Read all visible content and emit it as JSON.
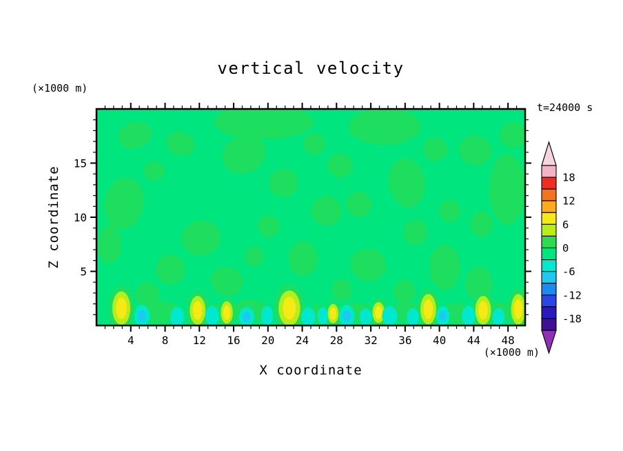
{
  "chart_data": {
    "type": "contour",
    "title": "vertical velocity",
    "annotation_time": "t=24000 s",
    "xlabel": "X coordinate",
    "ylabel": "Z coordinate",
    "x_unit_label": "(×1000 m)",
    "y_unit_label": "(×1000 m)",
    "x_range": [
      0,
      50
    ],
    "y_range": [
      0,
      20
    ],
    "x_major_ticks": [
      4,
      8,
      12,
      16,
      20,
      24,
      28,
      32,
      36,
      40,
      44,
      48
    ],
    "x_minor_tick_step": 1,
    "y_major_ticks": [
      5,
      10,
      15
    ],
    "y_minor_tick_step": 1,
    "colorbar": {
      "levels": [
        21,
        18,
        15,
        12,
        9,
        6,
        3,
        0,
        -3,
        -6,
        -9,
        -12,
        -15,
        -18,
        -21
      ],
      "labels": [
        18,
        12,
        6,
        0,
        -6,
        -12,
        -18
      ],
      "segment_colors": [
        "#f3b3c6",
        "#ee2e24",
        "#f4731e",
        "#fbab1d",
        "#f5ea16",
        "#b7ee1a",
        "#2cdc4e",
        "#00e57e",
        "#00e9ce",
        "#1ec8f0",
        "#1a8cf0",
        "#2a46e8",
        "#2b19c0",
        "#3f0f96"
      ],
      "over_arrow_color": "#f7d4df",
      "under_arrow_color": "#9030b4"
    },
    "field_colors": {
      "base": "#00e57e",
      "weak_updraft": "#1ede60",
      "updraft_ring": "#b7ee1a",
      "updraft_core": "#f5ea16",
      "weak_downdraft": "#00e9ce",
      "downdraft_core": "#1ec8f0"
    },
    "features": {
      "positive_patches": [
        {
          "x": 4.5,
          "z": 17.6,
          "rx": 2.0,
          "rz": 1.2,
          "rot": -15
        },
        {
          "x": 3.2,
          "z": 11.3,
          "rx": 2.3,
          "rz": 2.4,
          "rot": 10
        },
        {
          "x": 1.5,
          "z": 7.5,
          "rx": 1.4,
          "rz": 1.8,
          "rot": 0
        },
        {
          "x": 9.8,
          "z": 16.8,
          "rx": 1.7,
          "rz": 1.1,
          "rot": 20
        },
        {
          "x": 6.7,
          "z": 14.3,
          "rx": 1.2,
          "rz": 0.9,
          "rot": 0
        },
        {
          "x": 19.5,
          "z": 18.8,
          "rx": 5.8,
          "rz": 1.6,
          "rot": 0
        },
        {
          "x": 17.2,
          "z": 15.8,
          "rx": 2.6,
          "rz": 1.7,
          "rot": -20
        },
        {
          "x": 21.8,
          "z": 13.2,
          "rx": 1.7,
          "rz": 1.3,
          "rot": 0
        },
        {
          "x": 25.4,
          "z": 16.8,
          "rx": 1.3,
          "rz": 1.0,
          "rot": 0
        },
        {
          "x": 28.4,
          "z": 14.8,
          "rx": 1.5,
          "rz": 1.1,
          "rot": 15
        },
        {
          "x": 33.6,
          "z": 18.4,
          "rx": 4.2,
          "rz": 1.7,
          "rot": 0
        },
        {
          "x": 36.2,
          "z": 13.2,
          "rx": 2.1,
          "rz": 2.3,
          "rot": -10
        },
        {
          "x": 30.6,
          "z": 11.2,
          "rx": 1.5,
          "rz": 1.2,
          "rot": 0
        },
        {
          "x": 39.5,
          "z": 16.3,
          "rx": 1.4,
          "rz": 1.1,
          "rot": 0
        },
        {
          "x": 44.2,
          "z": 16.2,
          "rx": 1.9,
          "rz": 1.4,
          "rot": 15
        },
        {
          "x": 48.6,
          "z": 17.6,
          "rx": 1.6,
          "rz": 1.2,
          "rot": 0
        },
        {
          "x": 47.9,
          "z": 12.6,
          "rx": 2.1,
          "rz": 3.3,
          "rot": 0
        },
        {
          "x": 44.9,
          "z": 9.4,
          "rx": 1.3,
          "rz": 1.2,
          "rot": 0
        },
        {
          "x": 41.2,
          "z": 10.6,
          "rx": 1.3,
          "rz": 1.0,
          "rot": 0
        },
        {
          "x": 12.2,
          "z": 8.1,
          "rx": 2.3,
          "rz": 1.6,
          "rot": -10
        },
        {
          "x": 8.6,
          "z": 5.2,
          "rx": 1.7,
          "rz": 1.4,
          "rot": 0
        },
        {
          "x": 15.2,
          "z": 4.1,
          "rx": 1.9,
          "rz": 1.3,
          "rot": 15
        },
        {
          "x": 20.1,
          "z": 9.2,
          "rx": 1.3,
          "rz": 1.0,
          "rot": 0
        },
        {
          "x": 24.1,
          "z": 6.2,
          "rx": 1.7,
          "rz": 1.6,
          "rot": 0
        },
        {
          "x": 26.8,
          "z": 10.6,
          "rx": 1.8,
          "rz": 1.4,
          "rot": -15
        },
        {
          "x": 31.7,
          "z": 5.6,
          "rx": 2.1,
          "rz": 1.5,
          "rot": 10
        },
        {
          "x": 37.2,
          "z": 8.6,
          "rx": 1.4,
          "rz": 1.2,
          "rot": 0
        },
        {
          "x": 40.6,
          "z": 5.4,
          "rx": 1.8,
          "rz": 2.1,
          "rot": 0
        },
        {
          "x": 44.6,
          "z": 3.9,
          "rx": 1.6,
          "rz": 1.5,
          "rot": 0
        },
        {
          "x": 35.9,
          "z": 3.1,
          "rx": 1.3,
          "rz": 1.1,
          "rot": 0
        },
        {
          "x": 28.6,
          "z": 3.3,
          "rx": 1.2,
          "rz": 1.0,
          "rot": 0
        },
        {
          "x": 18.4,
          "z": 6.4,
          "rx": 1.1,
          "rz": 0.9,
          "rot": 0
        },
        {
          "x": 5.9,
          "z": 2.9,
          "rx": 1.4,
          "rz": 1.1,
          "rot": 0
        },
        {
          "x": 7.1,
          "z": 1.3,
          "rx": 2.6,
          "rz": 1.0,
          "rot": 0
        },
        {
          "x": 17.9,
          "z": 1.4,
          "rx": 2.2,
          "rz": 1.0,
          "rot": 0
        },
        {
          "x": 30.1,
          "z": 1.2,
          "rx": 2.1,
          "rz": 0.9,
          "rot": 0
        },
        {
          "x": 36.1,
          "z": 1.3,
          "rx": 1.6,
          "rz": 0.9,
          "rot": 0
        },
        {
          "x": 41.9,
          "z": 1.2,
          "rx": 1.6,
          "rz": 0.9,
          "rot": 0
        },
        {
          "x": 47.0,
          "z": 1.3,
          "rx": 1.3,
          "rz": 0.9,
          "rot": 0
        },
        {
          "x": 25.8,
          "z": 1.1,
          "rx": 1.4,
          "rz": 0.8,
          "rot": 0
        },
        {
          "x": 13.8,
          "z": 1.2,
          "rx": 1.3,
          "rz": 0.8,
          "rot": 0
        }
      ],
      "updrafts": [
        {
          "x": 2.9,
          "z": 1.6,
          "rx": 1.5,
          "rz": 2.1
        },
        {
          "x": 11.8,
          "z": 1.4,
          "rx": 1.3,
          "rz": 1.8
        },
        {
          "x": 15.2,
          "z": 1.2,
          "rx": 1.0,
          "rz": 1.4
        },
        {
          "x": 22.5,
          "z": 1.6,
          "rx": 1.8,
          "rz": 2.2
        },
        {
          "x": 27.6,
          "z": 1.1,
          "rx": 0.9,
          "rz": 1.2
        },
        {
          "x": 32.9,
          "z": 1.2,
          "rx": 1.0,
          "rz": 1.3
        },
        {
          "x": 38.7,
          "z": 1.5,
          "rx": 1.3,
          "rz": 1.9
        },
        {
          "x": 45.1,
          "z": 1.4,
          "rx": 1.3,
          "rz": 1.8
        },
        {
          "x": 49.2,
          "z": 1.5,
          "rx": 1.2,
          "rz": 1.9
        }
      ],
      "downdrafts": [
        {
          "x": 5.3,
          "z": 0.9,
          "rx": 0.9,
          "rz": 1.0,
          "core": true
        },
        {
          "x": 9.4,
          "z": 0.8,
          "rx": 0.8,
          "rz": 0.9,
          "core": false
        },
        {
          "x": 13.5,
          "z": 0.9,
          "rx": 0.8,
          "rz": 0.9,
          "core": false
        },
        {
          "x": 17.5,
          "z": 0.8,
          "rx": 0.9,
          "rz": 0.9,
          "core": true
        },
        {
          "x": 19.9,
          "z": 0.9,
          "rx": 0.7,
          "rz": 0.9,
          "core": false
        },
        {
          "x": 24.7,
          "z": 0.8,
          "rx": 0.8,
          "rz": 0.9,
          "core": false
        },
        {
          "x": 26.4,
          "z": 0.9,
          "rx": 0.6,
          "rz": 0.8,
          "core": false
        },
        {
          "x": 29.2,
          "z": 0.9,
          "rx": 0.9,
          "rz": 1.0,
          "core": true
        },
        {
          "x": 31.4,
          "z": 0.8,
          "rx": 0.7,
          "rz": 0.8,
          "core": false
        },
        {
          "x": 34.2,
          "z": 0.9,
          "rx": 0.9,
          "rz": 0.9,
          "core": false
        },
        {
          "x": 36.9,
          "z": 0.8,
          "rx": 0.7,
          "rz": 0.8,
          "core": false
        },
        {
          "x": 40.4,
          "z": 0.9,
          "rx": 0.8,
          "rz": 0.9,
          "core": true
        },
        {
          "x": 43.4,
          "z": 0.9,
          "rx": 0.8,
          "rz": 0.9,
          "core": false
        },
        {
          "x": 46.9,
          "z": 0.8,
          "rx": 0.7,
          "rz": 0.8,
          "core": false
        }
      ]
    }
  }
}
